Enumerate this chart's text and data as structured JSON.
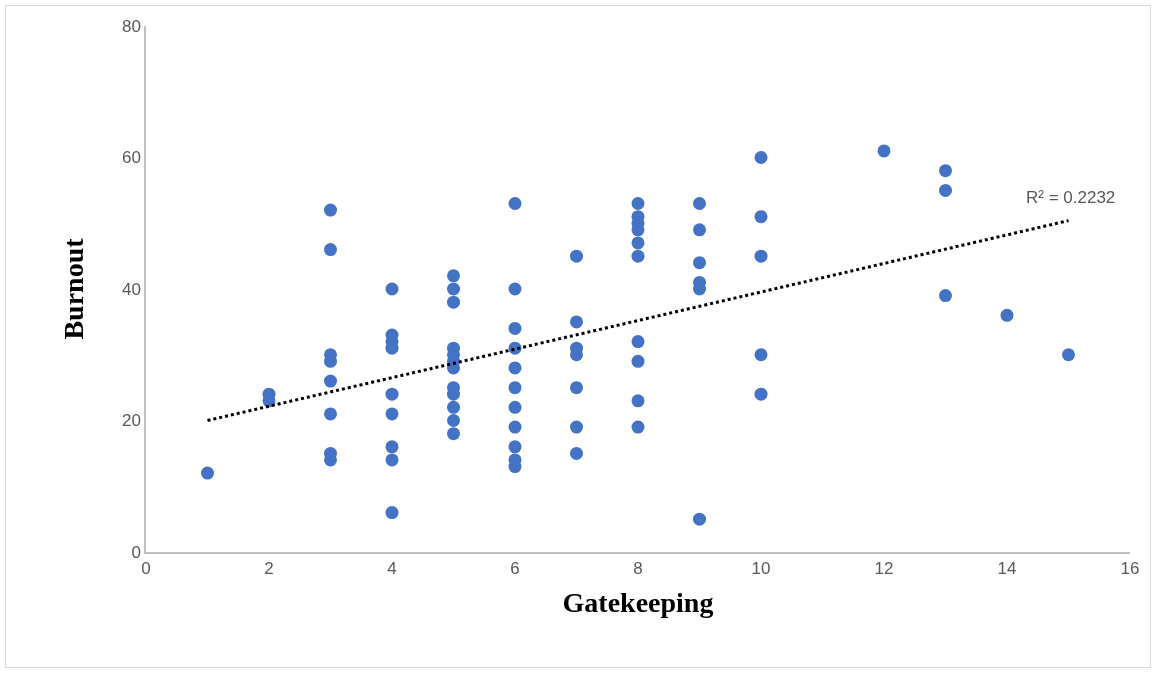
{
  "chart_data": {
    "type": "scatter",
    "xlabel": "Gatekeeping",
    "ylabel": "Burnout",
    "xlim": [
      0,
      16
    ],
    "xticks": [
      0,
      2,
      4,
      6,
      8,
      10,
      12,
      14,
      16
    ],
    "ylim": [
      0,
      80
    ],
    "yticks": [
      0,
      20,
      40,
      60,
      80
    ],
    "grid": false,
    "marker": "circle",
    "series": [
      {
        "color": "#4472c4",
        "x": [
          1,
          2,
          2,
          3,
          3,
          3,
          3,
          3,
          3,
          3,
          3,
          4,
          4,
          4,
          4,
          4,
          4,
          4,
          4,
          4,
          5,
          5,
          5,
          5,
          5,
          5,
          5,
          5,
          5,
          5,
          5,
          5,
          6,
          6,
          6,
          6,
          6,
          6,
          6,
          6,
          6,
          6,
          6,
          7,
          7,
          7,
          7,
          7,
          7,
          7,
          8,
          8,
          8,
          8,
          8,
          8,
          8,
          8,
          8,
          8,
          9,
          9,
          9,
          9,
          9,
          9,
          10,
          10,
          10,
          10,
          10,
          12,
          13,
          13,
          13,
          14,
          15
        ],
        "values": [
          12,
          24,
          23,
          52,
          46,
          30,
          29,
          26,
          21,
          15,
          14,
          40,
          33,
          32,
          31,
          24,
          21,
          16,
          14,
          6,
          42,
          40,
          38,
          31,
          30,
          29,
          28,
          25,
          24,
          22,
          20,
          18,
          53,
          40,
          34,
          31,
          28,
          25,
          22,
          19,
          16,
          14,
          13,
          45,
          35,
          31,
          30,
          25,
          19,
          15,
          53,
          51,
          50,
          49,
          47,
          45,
          32,
          29,
          23,
          19,
          53,
          49,
          44,
          41,
          40,
          5,
          60,
          51,
          45,
          30,
          24,
          61,
          58,
          55,
          39,
          36,
          30
        ]
      },
      {
        "type": "line",
        "color": "#000000",
        "line_style": "dotted",
        "marker": "none",
        "x": [
          1,
          15
        ],
        "values": [
          20.0,
          50.4
        ]
      }
    ],
    "annotations": [
      "R² = 0.2232"
    ]
  }
}
